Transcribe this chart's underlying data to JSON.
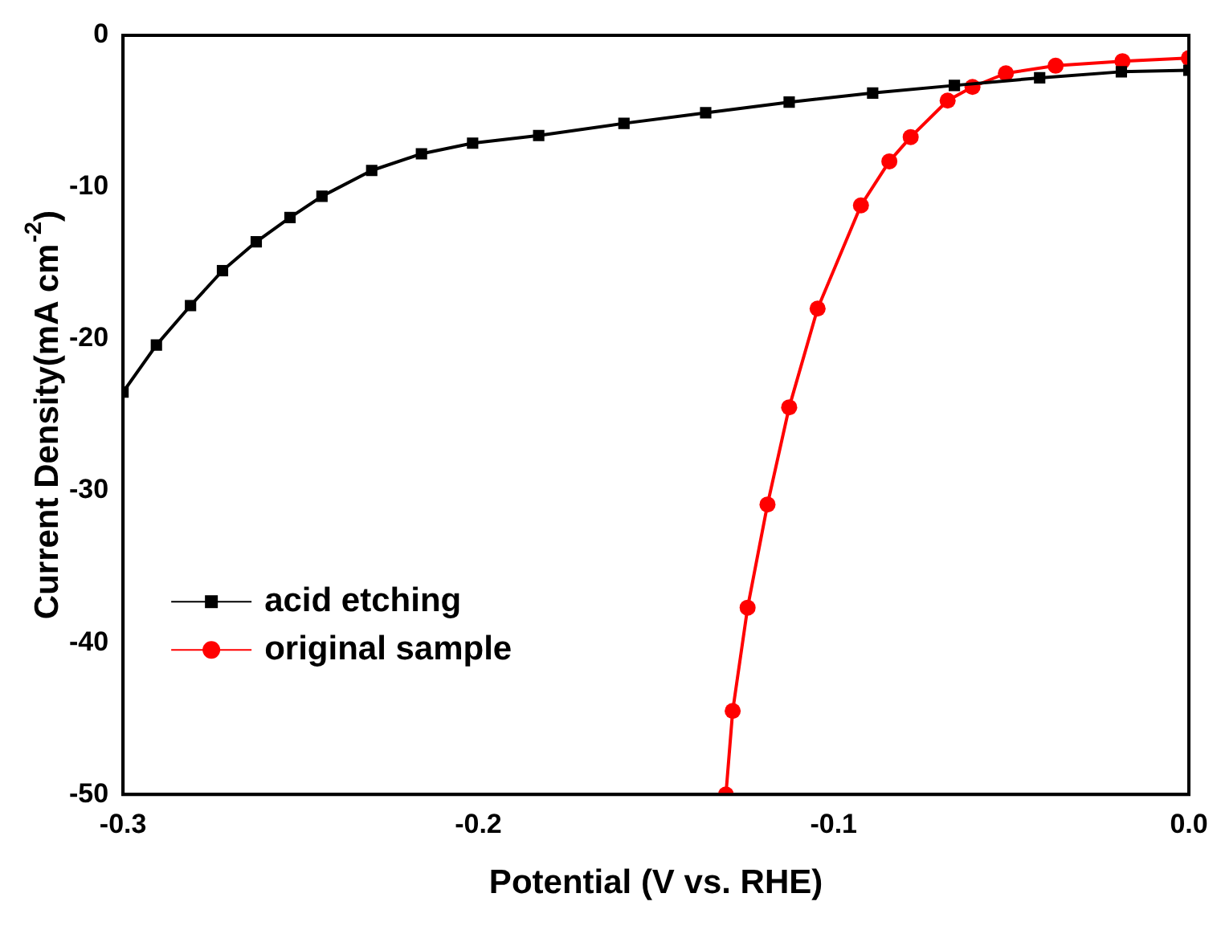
{
  "chart_data": {
    "type": "line",
    "xlabel": "Potential (V vs. RHE)",
    "ylabel": "Current Density(mA cm$^{-2}$)",
    "xlim": [
      -0.3,
      0
    ],
    "xticks": [
      -0.3,
      -0.2,
      -0.1,
      {
        "value": 0,
        "label": "0.0"
      }
    ],
    "ylim": [
      -50,
      0
    ],
    "yticks": [
      -50,
      -40,
      -30,
      -20,
      -10,
      0
    ],
    "legend": "bottom left",
    "grid": false,
    "line_style": "solid",
    "series": [
      {
        "name": "acid etching",
        "color": "#000000",
        "marker": "square",
        "x": [
          -0.3,
          -0.2906,
          -0.281,
          -0.272,
          -0.2625,
          -0.253,
          -0.244,
          -0.23,
          -0.216,
          -0.2016,
          -0.183,
          -0.159,
          -0.136,
          -0.1125,
          -0.089,
          -0.066,
          -0.042,
          -0.019,
          0
        ],
        "values": [
          -23.5,
          -20.4,
          -17.8,
          -15.5,
          -13.6,
          -12,
          -10.6,
          -8.9,
          -7.8,
          -7.1,
          -6.6,
          -5.8,
          -5.1,
          -4.4,
          -3.8,
          -3.3,
          -2.8,
          -2.4,
          -2.3
        ]
      },
      {
        "name": "original sample",
        "color": "#ff0000",
        "marker": "circle",
        "x": [
          -0.1303,
          -0.1284,
          -0.1242,
          -0.1186,
          -0.1125,
          -0.1045,
          -0.0923,
          -0.0843,
          -0.0783,
          -0.0679,
          -0.0609,
          -0.0515,
          -0.0375,
          -0.0187,
          0
        ],
        "values": [
          -50,
          -44.5,
          -37.7,
          -30.9,
          -24.5,
          -18,
          -11.2,
          -8.3,
          -6.7,
          -4.3,
          -3.4,
          -2.5,
          -2,
          -1.7,
          -1.5
        ]
      }
    ]
  }
}
